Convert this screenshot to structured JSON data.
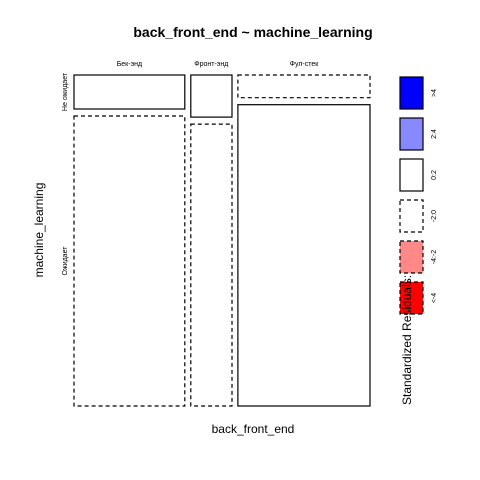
{
  "chart_data": {
    "type": "mosaic",
    "title": "back_front_end ~ machine_learning",
    "xlabel": "back_front_end",
    "ylabel": "machine_learning",
    "x_categories": [
      "Бек-энд",
      "Фронт-энд",
      "Фул-стек"
    ],
    "y_categories": [
      "Не ожидает",
      "Ожидает"
    ],
    "column_proportions": [
      0.39,
      0.145,
      0.465
    ],
    "cells": [
      {
        "x": "Бек-энд",
        "y": "Не ожидает",
        "proportion": 0.105,
        "residual_class": "0:2"
      },
      {
        "x": "Бек-энд",
        "y": "Ожидает",
        "proportion": 0.895,
        "residual_class": "-2:0"
      },
      {
        "x": "Фронт-энд",
        "y": "Не ожидает",
        "proportion": 0.13,
        "residual_class": "0:2"
      },
      {
        "x": "Фронт-энд",
        "y": "Ожидает",
        "proportion": 0.87,
        "residual_class": "-2:0"
      },
      {
        "x": "Фул-стек",
        "y": "Не ожидает",
        "proportion": 0.07,
        "residual_class": "-2:0"
      },
      {
        "x": "Фул-стек",
        "y": "Ожидает",
        "proportion": 0.93,
        "residual_class": "0:2"
      }
    ],
    "legend": {
      "title": "Standardized Residuals:",
      "placement": "right",
      "items": [
        {
          "label": ">4",
          "color": "#0000ff",
          "dashed": false
        },
        {
          "label": "2:4",
          "color": "#8888ff",
          "dashed": false
        },
        {
          "label": "0:2",
          "color": "#ffffff",
          "dashed": false
        },
        {
          "label": "-2:0",
          "color": "#ffffff",
          "dashed": true
        },
        {
          "label": "-4:-2",
          "color": "#ff8888",
          "dashed": true
        },
        {
          "label": "<-4",
          "color": "#ff0000",
          "dashed": true
        }
      ]
    }
  }
}
